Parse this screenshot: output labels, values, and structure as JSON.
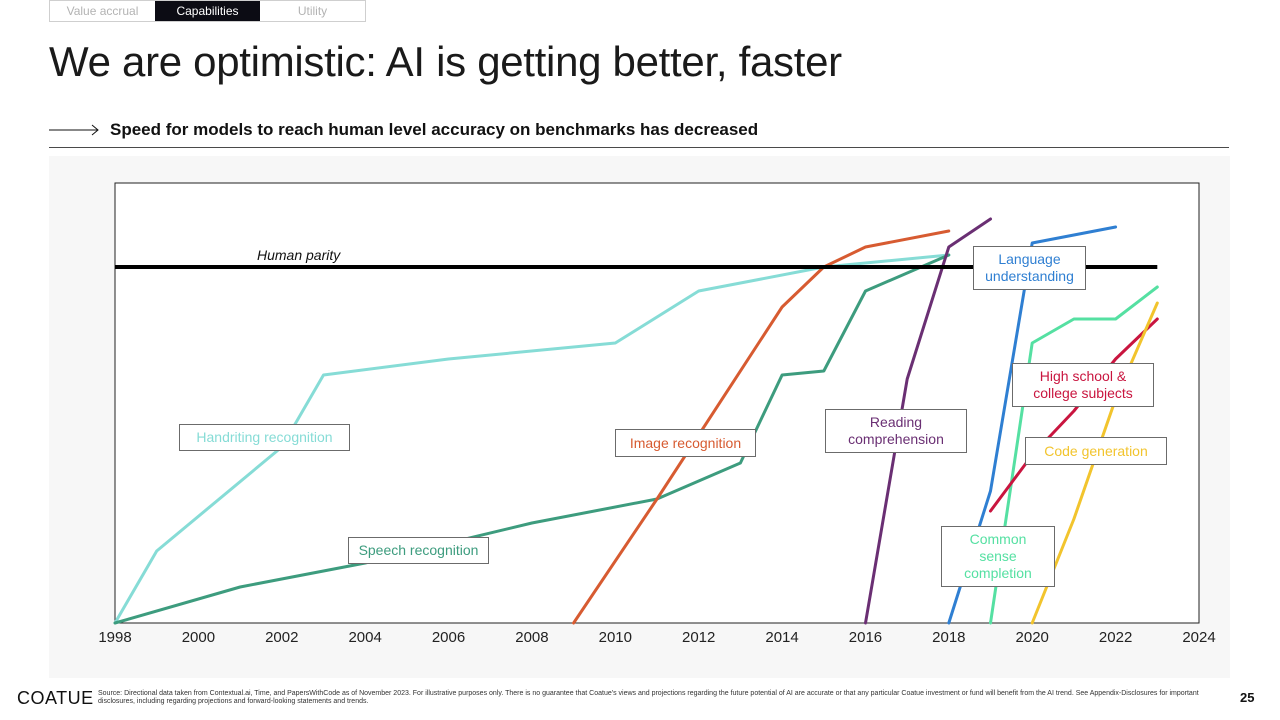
{
  "tabs": [
    {
      "label": "Value accrual",
      "active": false
    },
    {
      "label": "Capabilities",
      "active": true
    },
    {
      "label": "Utility",
      "active": false
    }
  ],
  "title": "We are optimistic: AI is getting better, faster",
  "subtitle": "Speed for models to reach human level accuracy on benchmarks has decreased",
  "chart_data": {
    "type": "line",
    "title": "",
    "xlabel": "",
    "ylabel": "",
    "xlim": [
      1998,
      2024
    ],
    "ylim": [
      0,
      110
    ],
    "x_ticks": [
      1998,
      2000,
      2002,
      2004,
      2006,
      2008,
      2010,
      2012,
      2014,
      2016,
      2018,
      2020,
      2022,
      2024
    ],
    "human_parity": {
      "label": "Human parity",
      "value": 89,
      "x_range": [
        1998,
        2023
      ]
    },
    "series": [
      {
        "key": "handwriting",
        "name": "Handriting recognition",
        "color": "#86dcd6",
        "points": [
          [
            1998,
            0
          ],
          [
            1999,
            18
          ],
          [
            2002,
            44
          ],
          [
            2003,
            62
          ],
          [
            2006,
            66
          ],
          [
            2010,
            70
          ],
          [
            2012,
            83
          ],
          [
            2015,
            89
          ],
          [
            2018,
            92
          ]
        ]
      },
      {
        "key": "speech",
        "name": "Speech recognition",
        "color": "#3d9c7e",
        "points": [
          [
            1998,
            0
          ],
          [
            2001,
            9
          ],
          [
            2004,
            15
          ],
          [
            2008,
            25
          ],
          [
            2011,
            31
          ],
          [
            2013,
            40
          ],
          [
            2014,
            62
          ],
          [
            2015,
            63
          ],
          [
            2016,
            83
          ],
          [
            2018,
            92
          ]
        ]
      },
      {
        "key": "image",
        "name": "Image recognition",
        "color": "#d75b31",
        "points": [
          [
            2009,
            0
          ],
          [
            2011,
            31
          ],
          [
            2014,
            79
          ],
          [
            2015,
            89
          ],
          [
            2016,
            94
          ],
          [
            2018,
            98
          ]
        ]
      },
      {
        "key": "reading",
        "name": "Reading comprehension",
        "color": "#6a2f73",
        "points": [
          [
            2016,
            0
          ],
          [
            2017,
            61
          ],
          [
            2018,
            94
          ],
          [
            2019,
            101
          ]
        ]
      },
      {
        "key": "language",
        "name": "Language understanding",
        "color": "#2f7fd2",
        "points": [
          [
            2018,
            0
          ],
          [
            2019,
            33
          ],
          [
            2020,
            95
          ],
          [
            2022,
            99
          ]
        ]
      },
      {
        "key": "common_sense",
        "name": "Common sense completion",
        "color": "#55e0a2",
        "points": [
          [
            2019,
            0
          ],
          [
            2020,
            70
          ],
          [
            2021,
            76
          ],
          [
            2022,
            76
          ],
          [
            2023,
            84
          ]
        ]
      },
      {
        "key": "high_school",
        "name": "High school & college subjects",
        "color": "#c9153f",
        "points": [
          [
            2019,
            28
          ],
          [
            2020,
            42
          ],
          [
            2021,
            53
          ],
          [
            2022,
            66
          ],
          [
            2023,
            76
          ]
        ]
      },
      {
        "key": "code",
        "name": "Code generation",
        "color": "#f2c42d",
        "points": [
          [
            2020,
            0
          ],
          [
            2021,
            26
          ],
          [
            2022,
            56
          ],
          [
            2023,
            80
          ]
        ]
      }
    ]
  },
  "labels": {
    "handwriting": "Handriting recognition",
    "speech": "Speech recognition",
    "image": "Image recognition",
    "reading_line1": "Reading",
    "reading_line2": "comprehension",
    "language_line1": "Language",
    "language_line2": "understanding",
    "highschool_line1": "High school &",
    "highschool_line2": "college subjects",
    "code": "Code generation",
    "commonsense_line1": "Common",
    "commonsense_line2": "sense",
    "commonsense_line3": "completion"
  },
  "footer": {
    "logo": "COATUE",
    "source": "Source: Directional data taken from Contextual.ai, Time, and PapersWithCode as of November 2023. For illustrative purposes only. There is no guarantee that Coatue's views and projections regarding the future potential of AI are accurate or that any particular Coatue investment or fund will benefit from the AI trend. See Appendix-Disclosures for important disclosures, including regarding projections and forward-looking statements and trends.",
    "page_number": "25"
  }
}
